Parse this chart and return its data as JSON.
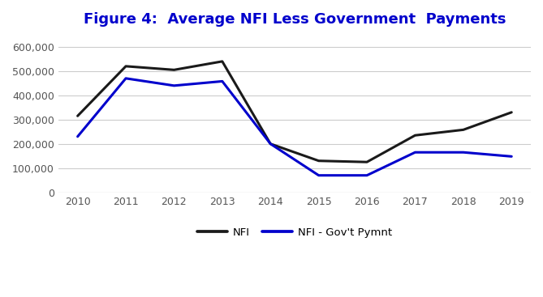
{
  "title": "Figure 4:  Average NFI Less Government  Payments",
  "years": [
    2010,
    2011,
    2012,
    2013,
    2014,
    2015,
    2016,
    2017,
    2018,
    2019
  ],
  "nfi": [
    315000,
    520000,
    505000,
    540000,
    200000,
    130000,
    125000,
    235000,
    258000,
    330000
  ],
  "nfi_gov": [
    230000,
    470000,
    440000,
    458000,
    200000,
    70000,
    70000,
    165000,
    165000,
    148000
  ],
  "nfi_color": "#1a1a1a",
  "nfi_gov_color": "#0000cc",
  "ylim": [
    0,
    650000
  ],
  "yticks": [
    0,
    100000,
    200000,
    300000,
    400000,
    500000,
    600000
  ],
  "background_color": "#ffffff",
  "title_color": "#0000cc",
  "title_fontsize": 13,
  "tick_fontsize": 9,
  "legend_labels": [
    "NFI",
    "NFI - Gov't Pymnt"
  ],
  "line_width": 2.2,
  "grid_color": "#cccccc",
  "grid_linewidth": 0.8,
  "xlim_left": 2009.6,
  "xlim_right": 2019.4
}
